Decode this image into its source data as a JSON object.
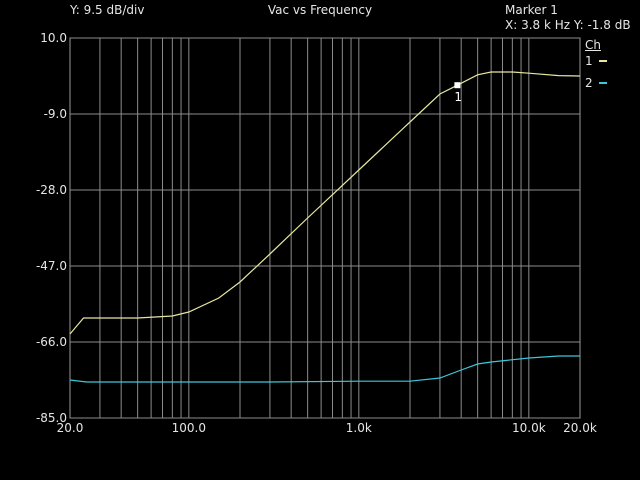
{
  "header": {
    "y_scale": "Y: 9.5 dB/div",
    "title": "Vac vs Frequency",
    "marker_title": "Marker 1",
    "marker_readout": "X: 3.8 k Hz  Y: -1.8  dB"
  },
  "legend": {
    "heading": "Ch",
    "entries": [
      {
        "label": "1",
        "color": "#e6e6a0"
      },
      {
        "label": "2",
        "color": "#3cc8d8"
      }
    ]
  },
  "chart_data": {
    "type": "line",
    "xscale": "log",
    "xlim": [
      20,
      20000
    ],
    "ylim": [
      -85,
      10
    ],
    "grid": true,
    "x_ticks": [
      {
        "value": 20,
        "label": "20.0"
      },
      {
        "value": 100,
        "label": "100.0"
      },
      {
        "value": 1000,
        "label": "1.0k"
      },
      {
        "value": 10000,
        "label": "10.0k"
      },
      {
        "value": 20000,
        "label": "20.0k"
      }
    ],
    "y_ticks": [
      {
        "value": 10,
        "label": "10.0"
      },
      {
        "value": -9,
        "label": "-9.0"
      },
      {
        "value": -28,
        "label": "-28.0"
      },
      {
        "value": -47,
        "label": "-47.0"
      },
      {
        "value": -66,
        "label": "-66.0"
      },
      {
        "value": -85,
        "label": "-85.0"
      }
    ],
    "series": [
      {
        "name": "1",
        "color": "#e6e6a0",
        "points": [
          [
            20,
            -64
          ],
          [
            24,
            -60
          ],
          [
            30,
            -60
          ],
          [
            50,
            -60
          ],
          [
            80,
            -59.5
          ],
          [
            100,
            -58.5
          ],
          [
            150,
            -55
          ],
          [
            200,
            -51
          ],
          [
            300,
            -44
          ],
          [
            500,
            -35
          ],
          [
            1000,
            -23
          ],
          [
            2000,
            -11
          ],
          [
            3000,
            -4
          ],
          [
            3800,
            -1.8
          ],
          [
            5000,
            0.8
          ],
          [
            6000,
            1.5
          ],
          [
            8000,
            1.5
          ],
          [
            10000,
            1.2
          ],
          [
            15000,
            0.6
          ],
          [
            20000,
            0.5
          ]
        ]
      },
      {
        "name": "2",
        "color": "#3cc8d8",
        "points": [
          [
            20,
            -75.5
          ],
          [
            25,
            -76
          ],
          [
            100,
            -76
          ],
          [
            200,
            -76
          ],
          [
            300,
            -76
          ],
          [
            1000,
            -75.8
          ],
          [
            2000,
            -75.8
          ],
          [
            3000,
            -75
          ],
          [
            4000,
            -73
          ],
          [
            5000,
            -71.5
          ],
          [
            6000,
            -71
          ],
          [
            10000,
            -70
          ],
          [
            15000,
            -69.5
          ],
          [
            20000,
            -69.5
          ]
        ]
      }
    ],
    "marker": {
      "label": "1",
      "x": 3800,
      "y": -1.8
    }
  }
}
